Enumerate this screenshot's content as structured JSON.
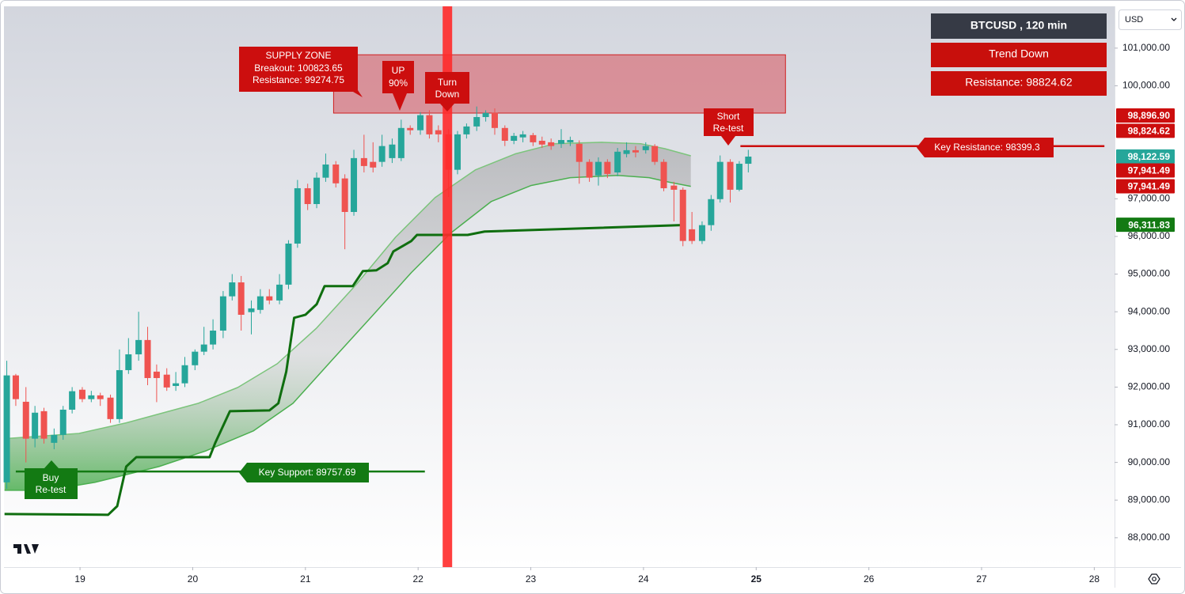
{
  "chart_data": {
    "type": "candlestick",
    "title": "BTCUSD , 120 min",
    "currency": "USD",
    "trend": "Trend Down",
    "resistance_box": "Resistance: 98824.62",
    "up_color": "#26a69a",
    "down_color": "#ef5350",
    "xlim": [
      18.325,
      28.18
    ],
    "xticks": [
      19,
      20,
      21,
      22,
      23,
      24,
      25,
      26,
      27,
      28
    ],
    "ylim": [
      87220,
      102110
    ],
    "yticks": [
      {
        "value": 101000,
        "label": "101,000.00"
      },
      {
        "value": 100000,
        "label": "100,000.00"
      },
      {
        "value": 97000,
        "label": "97,000.00"
      },
      {
        "value": 96000,
        "label": "96,000.00"
      },
      {
        "value": 95000,
        "label": "95,000.00"
      },
      {
        "value": 94000,
        "label": "94,000.00"
      },
      {
        "value": 93000,
        "label": "93,000.00"
      },
      {
        "value": 92000,
        "label": "92,000.00"
      },
      {
        "value": 91000,
        "label": "91,000.00"
      },
      {
        "value": 90000,
        "label": "90,000.00"
      },
      {
        "value": 89000,
        "label": "89,000.00"
      },
      {
        "value": 88000,
        "label": "88,000.00"
      }
    ],
    "grid": false,
    "x": [
      18.35,
      18.43,
      18.52,
      18.6,
      18.68,
      18.77,
      18.85,
      18.93,
      19.02,
      19.1,
      19.18,
      19.27,
      19.35,
      19.43,
      19.52,
      19.6,
      19.68,
      19.77,
      19.85,
      19.93,
      20.02,
      20.1,
      20.18,
      20.27,
      20.35,
      20.43,
      20.52,
      20.6,
      20.68,
      20.77,
      20.85,
      20.93,
      21.02,
      21.1,
      21.18,
      21.27,
      21.35,
      21.43,
      21.52,
      21.6,
      21.68,
      21.77,
      21.85,
      21.93,
      22.02,
      22.1,
      22.18,
      22.27,
      22.35,
      22.43,
      22.52,
      22.6,
      22.68,
      22.77,
      22.85,
      22.93,
      23.02,
      23.1,
      23.18,
      23.27,
      23.35,
      23.43,
      23.52,
      23.6,
      23.68,
      23.77,
      23.85,
      23.93,
      24.02,
      24.1,
      24.18,
      24.27,
      24.35,
      24.43,
      24.52,
      24.6,
      24.68,
      24.77,
      24.85,
      24.93
    ],
    "open": [
      89470,
      92310,
      91610,
      90630,
      91360,
      90520,
      90730,
      91400,
      91930,
      91680,
      91780,
      91720,
      91150,
      92450,
      92870,
      93250,
      92410,
      92330,
      92030,
      92100,
      92580,
      92940,
      93130,
      93500,
      94410,
      94780,
      93990,
      94050,
      94410,
      94300,
      94720,
      95810,
      97280,
      96860,
      97560,
      97910,
      97540,
      96650,
      98080,
      97980,
      97980,
      98080,
      98080,
      98880,
      98820,
      99220,
      98820,
      98710,
      97770,
      98710,
      98920,
      99170,
      99280,
      98880,
      98540,
      98630,
      98690,
      98540,
      98500,
      98460,
      98500,
      98460,
      97980,
      97620,
      97980,
      97700,
      98190,
      98290,
      98290,
      98400,
      97980,
      97350,
      97240,
      96190,
      95880,
      96300,
      96990,
      97980,
      97240,
      97930
    ],
    "high": [
      92700,
      92350,
      92000,
      91500,
      91450,
      90900,
      91500,
      92000,
      92000,
      91900,
      91850,
      91800,
      93000,
      93300,
      94000,
      93600,
      92600,
      92500,
      92400,
      92800,
      93000,
      93600,
      93800,
      94550,
      95000,
      94950,
      94300,
      94600,
      94600,
      95000,
      95900,
      97500,
      97400,
      97700,
      98200,
      98000,
      97650,
      98300,
      98700,
      98500,
      98700,
      98600,
      99100,
      98950,
      99300,
      99350,
      98950,
      98850,
      98800,
      99000,
      99450,
      99350,
      99400,
      98950,
      98750,
      98800,
      98750,
      98650,
      98600,
      98850,
      98650,
      98550,
      98050,
      98100,
      98050,
      98350,
      98500,
      98400,
      98500,
      98450,
      98050,
      97450,
      97300,
      96650,
      96400,
      97100,
      98150,
      98050,
      98000,
      98300
    ],
    "low": [
      89300,
      91500,
      90000,
      90400,
      90500,
      90350,
      90600,
      91300,
      91600,
      91600,
      91500,
      91050,
      91050,
      92350,
      92700,
      92050,
      91600,
      91900,
      91900,
      92000,
      92450,
      92850,
      93000,
      93300,
      94300,
      93500,
      93400,
      93950,
      94200,
      94200,
      94600,
      95700,
      96700,
      96750,
      97450,
      97300,
      95660,
      96550,
      97700,
      97700,
      97850,
      97950,
      98000,
      98700,
      98700,
      98600,
      98500,
      97050,
      97650,
      98600,
      98800,
      99050,
      98700,
      98400,
      98450,
      98500,
      98400,
      98350,
      98300,
      98350,
      98400,
      97400,
      97450,
      97350,
      97550,
      97600,
      98100,
      98100,
      98200,
      97900,
      97200,
      96400,
      95740,
      95800,
      95800,
      96150,
      96900,
      96900,
      97200,
      97700
    ],
    "close": [
      92310,
      91680,
      90630,
      91320,
      90630,
      90730,
      91400,
      91890,
      91680,
      91780,
      91680,
      91150,
      92450,
      92870,
      93250,
      92240,
      92240,
      91990,
      92100,
      92580,
      92940,
      93130,
      93500,
      94410,
      94780,
      93920,
      94090,
      94410,
      94300,
      94720,
      95810,
      97280,
      96860,
      97560,
      97910,
      97410,
      96650,
      98080,
      97870,
      97830,
      98400,
      98440,
      98880,
      98820,
      99220,
      98710,
      98710,
      97770,
      98710,
      98920,
      99170,
      99280,
      98880,
      98540,
      98670,
      98710,
      98500,
      98440,
      98400,
      98560,
      98560,
      97980,
      97560,
      97980,
      97660,
      98250,
      98290,
      98230,
      98400,
      97980,
      97280,
      97240,
      95880,
      95880,
      96300,
      96990,
      97980,
      97240,
      97930,
      98120
    ],
    "trailing_stop": {
      "color": "#0f6e0f",
      "x": [
        18.33,
        19.25,
        19.33,
        19.41,
        19.5,
        20.15,
        20.2,
        20.33,
        20.68,
        20.76,
        20.83,
        20.9,
        21.0,
        21.1,
        21.17,
        21.42,
        21.51,
        21.63,
        21.73,
        21.78,
        21.94,
        21.99,
        22.44,
        22.59,
        24.33
      ],
      "values": [
        88630,
        88610,
        88840,
        89890,
        90140,
        90140,
        90520,
        91360,
        91380,
        91570,
        92410,
        93840,
        93920,
        94200,
        94680,
        94680,
        95080,
        95100,
        95290,
        95600,
        95880,
        96040,
        96040,
        96130,
        96300
      ]
    },
    "band_upper": {
      "color": "#7cc47c",
      "x": [
        18.33,
        18.99,
        19.41,
        20.05,
        20.4,
        20.75,
        21.1,
        21.45,
        21.8,
        22.15,
        22.51,
        22.86,
        23.21,
        23.63,
        23.98,
        24.19,
        24.42
      ],
      "values": [
        90630,
        90770,
        91050,
        91570,
        91990,
        92620,
        93570,
        94720,
        95980,
        97030,
        97770,
        98190,
        98460,
        98500,
        98460,
        98330,
        98140
      ]
    },
    "band_lower": {
      "color": "#4caf50",
      "x": [
        18.33,
        18.71,
        19.13,
        19.7,
        20.12,
        20.54,
        20.89,
        21.24,
        21.59,
        21.94,
        22.29,
        22.65,
        23.0,
        23.35,
        23.77,
        24.05,
        24.23,
        24.42
      ],
      "values": [
        89260,
        89260,
        89470,
        89890,
        90310,
        90840,
        91570,
        92730,
        93880,
        95040,
        96090,
        96930,
        97350,
        97560,
        97620,
        97560,
        97440,
        97330
      ]
    },
    "supply_zone": {
      "label": "SUPPLY ZONE",
      "breakout_label": "Breakout: 100823.65",
      "resistance_label": "Resistance: 99274.75",
      "top": 100823.65,
      "bottom": 99274.75,
      "x": [
        21.25,
        25.26
      ]
    },
    "key_resistance": {
      "label": "Key Resistance: 98399.3",
      "value": 98399.3,
      "x": [
        24.86,
        28.09
      ],
      "color": "#cc0e0e"
    },
    "key_support": {
      "label": "Key Support: 89757.69",
      "value": 89757.69,
      "x": [
        18.43,
        22.06
      ],
      "color": "#137a13"
    },
    "signal_line": {
      "x": 22.26,
      "color": "#ff2a2a"
    },
    "annotations": [
      {
        "lines": [
          "UP",
          "90%"
        ]
      },
      {
        "lines": [
          "Turn",
          "Down"
        ]
      },
      {
        "lines": [
          "Short",
          "Re-test"
        ]
      },
      {
        "lines": [
          "Buy",
          "Re-test"
        ]
      }
    ],
    "price_badges": [
      {
        "label": "98,896.90",
        "value": 98896.9,
        "color": "#cc0e0e"
      },
      {
        "label": "98,824.62",
        "value": 98824.62,
        "color": "#cc0e0e"
      },
      {
        "label": "98,122.59",
        "value": 98122.59,
        "color": "#26a69a"
      },
      {
        "label": "97,941.49",
        "value": 97941.49,
        "color": "#cc0e0e"
      },
      {
        "label": "97,941.49",
        "value": 97941.49,
        "color": "#cc0e0e"
      },
      {
        "label": "96,311.83",
        "value": 96311.83,
        "color": "#137a13"
      }
    ]
  }
}
